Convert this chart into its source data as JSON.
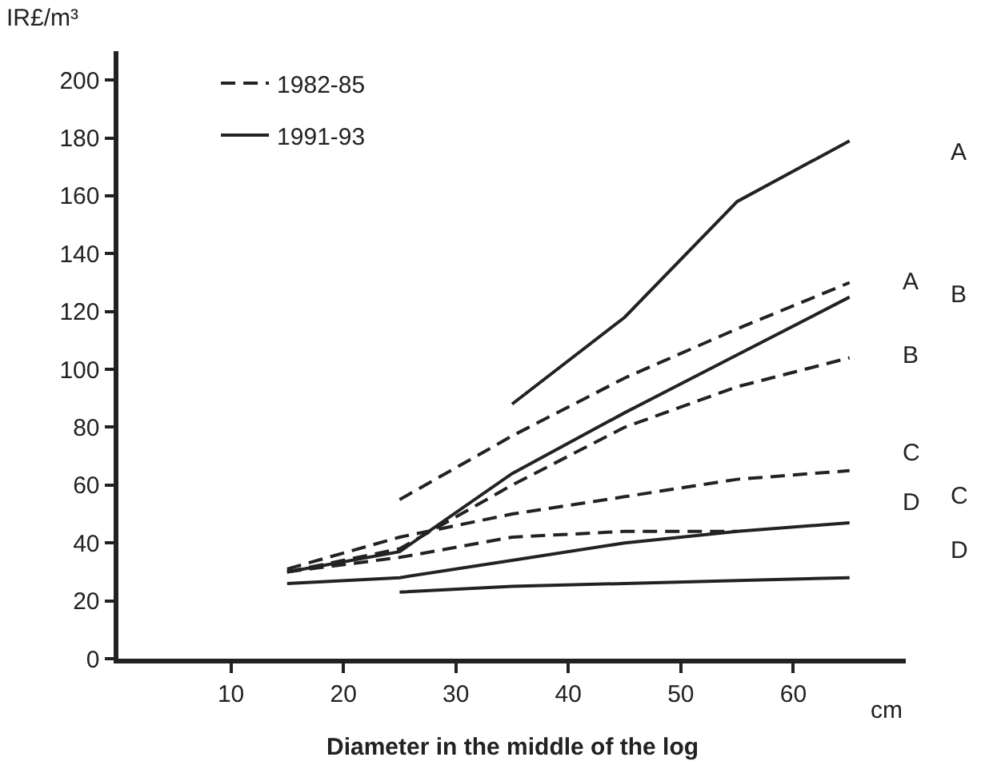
{
  "chart_data": {
    "type": "line",
    "xlabel": "Diameter in the middle of the log",
    "ylabel": "IR£/m³",
    "xlim": [
      0,
      70
    ],
    "xticks": [
      10,
      20,
      30,
      40,
      50,
      60
    ],
    "ylim": [
      0,
      210
    ],
    "yticks": [
      0,
      20,
      40,
      60,
      80,
      100,
      120,
      140,
      160,
      180,
      200
    ],
    "legend": "top left",
    "marker": "none",
    "series": [
      {
        "name": "1982-85",
        "color": "#222222",
        "line_style": "dashed",
        "x": [
          25,
          35,
          45,
          55,
          65
        ],
        "values": [
          55,
          77,
          97,
          114,
          130
        ]
      },
      {
        "name": "1991-93",
        "color": "#222222",
        "line_style": "solid",
        "x": [
          35,
          45,
          55,
          65
        ],
        "values": [
          88,
          118,
          158,
          179
        ]
      },
      {
        "color": "#222222",
        "line_style": "dashed",
        "x": [
          15,
          25,
          35,
          45,
          55,
          65
        ],
        "values": [
          30,
          38,
          60,
          80,
          94,
          104
        ]
      },
      {
        "color": "#222222",
        "line_style": "solid",
        "x": [
          15,
          25,
          35,
          45,
          55,
          65
        ],
        "values": [
          30,
          37,
          64,
          85,
          105,
          125
        ]
      },
      {
        "color": "#222222",
        "line_style": "dashed",
        "x": [
          15,
          25,
          35,
          45,
          55,
          65
        ],
        "values": [
          31,
          42,
          50,
          56,
          62,
          65
        ]
      },
      {
        "color": "#222222",
        "line_style": "solid",
        "x": [
          15,
          25,
          35,
          45,
          55,
          65
        ],
        "values": [
          26,
          28,
          34,
          40,
          44,
          47
        ]
      },
      {
        "color": "#222222",
        "line_style": "dashed",
        "x": [
          15,
          25,
          35,
          45,
          55
        ],
        "values": [
          30,
          35,
          42,
          44,
          44
        ]
      },
      {
        "color": "#222222",
        "line_style": "solid",
        "x": [
          25,
          35,
          45,
          55,
          65
        ],
        "values": [
          23,
          25,
          26,
          27,
          28
        ]
      }
    ],
    "annotations": [
      "A",
      "B",
      "C",
      "D",
      "A",
      "B",
      "C",
      "D",
      "cm"
    ]
  }
}
